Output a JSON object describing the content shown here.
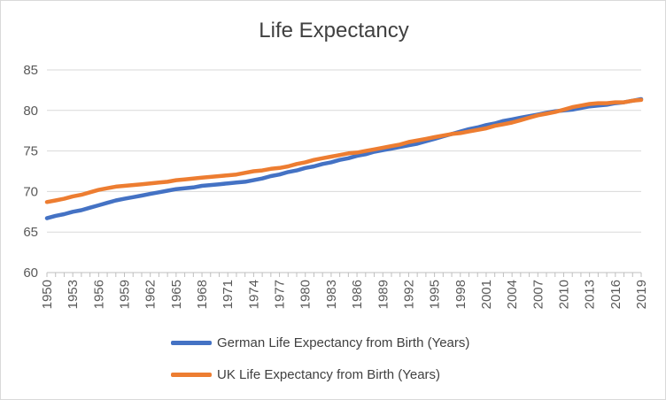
{
  "chart_data": {
    "type": "line",
    "title": "Life Expectancy",
    "xlabel": "",
    "ylabel": "",
    "xlim": [
      1950,
      2019
    ],
    "ylim": [
      60,
      85
    ],
    "yticks": [
      60,
      65,
      70,
      75,
      80,
      85
    ],
    "xticks": [
      1950,
      1953,
      1956,
      1959,
      1962,
      1965,
      1968,
      1971,
      1974,
      1977,
      1980,
      1983,
      1986,
      1989,
      1992,
      1995,
      1998,
      2001,
      2004,
      2007,
      2010,
      2013,
      2016,
      2019
    ],
    "grid": "horizontal",
    "legend_position": "bottom",
    "x": [
      1950,
      1951,
      1952,
      1953,
      1954,
      1955,
      1956,
      1957,
      1958,
      1959,
      1960,
      1961,
      1962,
      1963,
      1964,
      1965,
      1966,
      1967,
      1968,
      1969,
      1970,
      1971,
      1972,
      1973,
      1974,
      1975,
      1976,
      1977,
      1978,
      1979,
      1980,
      1981,
      1982,
      1983,
      1984,
      1985,
      1986,
      1987,
      1988,
      1989,
      1990,
      1991,
      1992,
      1993,
      1994,
      1995,
      1996,
      1997,
      1998,
      1999,
      2000,
      2001,
      2002,
      2003,
      2004,
      2005,
      2006,
      2007,
      2008,
      2009,
      2010,
      2011,
      2012,
      2013,
      2014,
      2015,
      2016,
      2017,
      2018,
      2019
    ],
    "series": [
      {
        "name": "German Life Expectancy from Birth (Years)",
        "color": "#4472c4",
        "values": [
          66.7,
          67.0,
          67.2,
          67.5,
          67.7,
          68.0,
          68.3,
          68.6,
          68.9,
          69.1,
          69.3,
          69.5,
          69.7,
          69.9,
          70.1,
          70.3,
          70.4,
          70.5,
          70.7,
          70.8,
          70.9,
          71.0,
          71.1,
          71.2,
          71.4,
          71.6,
          71.9,
          72.1,
          72.4,
          72.6,
          72.9,
          73.1,
          73.4,
          73.6,
          73.9,
          74.1,
          74.4,
          74.6,
          74.9,
          75.1,
          75.3,
          75.5,
          75.7,
          75.9,
          76.2,
          76.5,
          76.8,
          77.1,
          77.4,
          77.7,
          77.9,
          78.2,
          78.4,
          78.7,
          78.9,
          79.1,
          79.3,
          79.5,
          79.7,
          79.9,
          80.0,
          80.1,
          80.3,
          80.5,
          80.6,
          80.7,
          80.9,
          81.0,
          81.2,
          81.4
        ]
      },
      {
        "name": "UK Life Expectancy from Birth (Years)",
        "color": "#ed7d31",
        "values": [
          68.7,
          68.9,
          69.1,
          69.4,
          69.6,
          69.9,
          70.2,
          70.4,
          70.6,
          70.7,
          70.8,
          70.9,
          71.0,
          71.1,
          71.2,
          71.4,
          71.5,
          71.6,
          71.7,
          71.8,
          71.9,
          72.0,
          72.1,
          72.3,
          72.5,
          72.6,
          72.8,
          72.9,
          73.1,
          73.4,
          73.6,
          73.9,
          74.1,
          74.3,
          74.5,
          74.7,
          74.8,
          75.0,
          75.2,
          75.4,
          75.6,
          75.8,
          76.1,
          76.3,
          76.5,
          76.7,
          76.9,
          77.1,
          77.2,
          77.4,
          77.6,
          77.8,
          78.1,
          78.3,
          78.5,
          78.8,
          79.1,
          79.4,
          79.6,
          79.8,
          80.1,
          80.4,
          80.6,
          80.8,
          80.9,
          80.9,
          81.0,
          81.0,
          81.2,
          81.3
        ]
      }
    ]
  }
}
